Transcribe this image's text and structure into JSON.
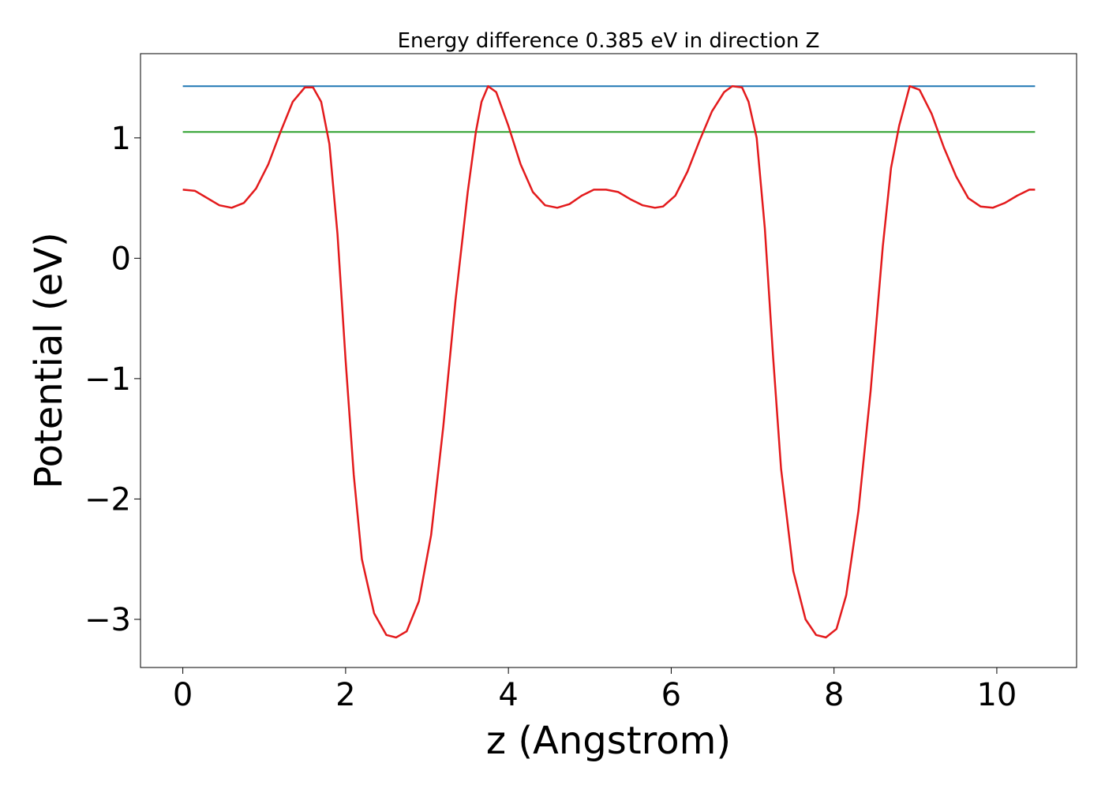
{
  "chart_data": {
    "type": "line",
    "title": "Energy difference 0.385 eV in direction Z",
    "xlabel": "z (Angstrom)",
    "ylabel": "Potential (eV)",
    "xlim": [
      -0.52,
      10.98
    ],
    "ylim": [
      -3.4,
      1.7
    ],
    "xticks": [
      0,
      2,
      4,
      6,
      8,
      10
    ],
    "xtick_labels": [
      "0",
      "2",
      "4",
      "6",
      "8",
      "10"
    ],
    "yticks": [
      1,
      0,
      -1,
      -2,
      -3
    ],
    "ytick_labels": [
      "1",
      "0",
      "−1",
      "−2",
      "−3"
    ],
    "grid": false,
    "legend": "none",
    "series": [
      {
        "color": "#1f77b4",
        "x": [
          0,
          10.47
        ],
        "y": [
          1.43,
          1.43
        ]
      },
      {
        "color": "#2ca02c",
        "x": [
          0,
          10.47
        ],
        "y": [
          1.05,
          1.05
        ]
      },
      {
        "color": "#e31a1c",
        "x": [
          0,
          0.15,
          0.3,
          0.45,
          0.6,
          0.75,
          0.9,
          1.05,
          1.2,
          1.35,
          1.5,
          1.6,
          1.7,
          1.8,
          1.9,
          2.0,
          2.1,
          2.2,
          2.35,
          2.5,
          2.62,
          2.75,
          2.9,
          3.05,
          3.2,
          3.35,
          3.5,
          3.6,
          3.67,
          3.75,
          3.85,
          4.0,
          4.15,
          4.3,
          4.45,
          4.6,
          4.75,
          4.9,
          5.05,
          5.2,
          5.35,
          5.5,
          5.65,
          5.8,
          5.9,
          6.05,
          6.2,
          6.35,
          6.5,
          6.65,
          6.75,
          6.87,
          6.95,
          7.05,
          7.15,
          7.25,
          7.35,
          7.5,
          7.65,
          7.78,
          7.9,
          8.03,
          8.15,
          8.3,
          8.45,
          8.6,
          8.7,
          8.8,
          8.93,
          9.05,
          9.2,
          9.35,
          9.5,
          9.65,
          9.8,
          9.95,
          10.1,
          10.25,
          10.4,
          10.47
        ],
        "y": [
          0.57,
          0.56,
          0.5,
          0.44,
          0.42,
          0.46,
          0.58,
          0.78,
          1.05,
          1.3,
          1.42,
          1.42,
          1.3,
          0.95,
          0.2,
          -0.85,
          -1.8,
          -2.5,
          -2.95,
          -3.13,
          -3.15,
          -3.1,
          -2.85,
          -2.3,
          -1.4,
          -0.35,
          0.55,
          1.05,
          1.3,
          1.43,
          1.38,
          1.1,
          0.78,
          0.55,
          0.44,
          0.42,
          0.45,
          0.52,
          0.57,
          0.57,
          0.55,
          0.49,
          0.44,
          0.42,
          0.43,
          0.52,
          0.72,
          0.98,
          1.22,
          1.38,
          1.43,
          1.42,
          1.3,
          1.0,
          0.25,
          -0.8,
          -1.75,
          -2.6,
          -3.0,
          -3.13,
          -3.15,
          -3.08,
          -2.8,
          -2.1,
          -1.1,
          0.1,
          0.75,
          1.1,
          1.43,
          1.4,
          1.2,
          0.92,
          0.68,
          0.5,
          0.43,
          0.42,
          0.46,
          0.52,
          0.57,
          0.57
        ]
      }
    ]
  }
}
